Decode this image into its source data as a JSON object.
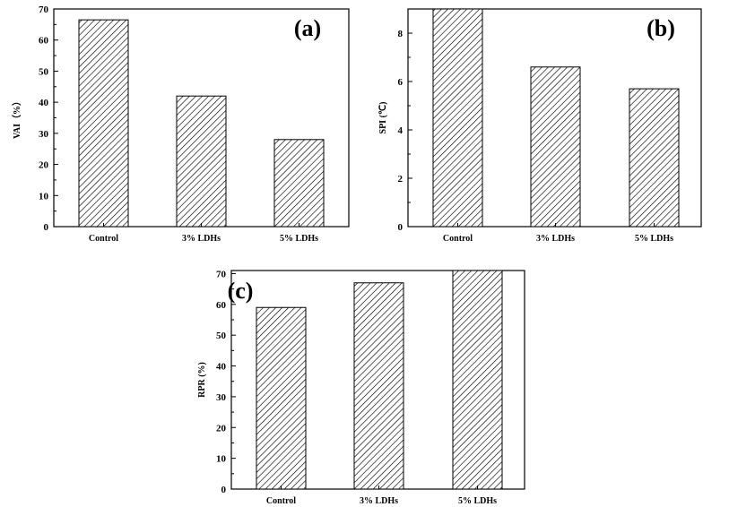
{
  "chart_data": [
    {
      "type": "bar",
      "panel_label": "(a)",
      "ylabel": "VAI（%）",
      "categories": [
        "Control",
        "3% LDHs",
        "5% LDHs"
      ],
      "values": [
        66.5,
        42,
        28
      ],
      "ylim": [
        0,
        70
      ],
      "yticks": [
        "0",
        "10",
        "20",
        "30",
        "40",
        "50",
        "60",
        "70"
      ],
      "pattern": "diagonal-hatch"
    },
    {
      "type": "bar",
      "panel_label": "(b)",
      "ylabel": "SPI (℃)",
      "categories": [
        "Control",
        "3% LDHs",
        "5% LDHs"
      ],
      "values": [
        9.0,
        6.6,
        5.7
      ],
      "ylim": [
        0,
        9
      ],
      "yticks": [
        "0",
        "2",
        "4",
        "6",
        "8"
      ],
      "pattern": "diagonal-hatch"
    },
    {
      "type": "bar",
      "panel_label": "(c)",
      "ylabel": "RPR (%)",
      "categories": [
        "Control",
        "3% LDHs",
        "5% LDHs"
      ],
      "values": [
        59,
        67,
        71
      ],
      "ylim": [
        0,
        71
      ],
      "yticks": [
        "0",
        "10",
        "20",
        "30",
        "40",
        "50",
        "60",
        "70"
      ],
      "pattern": "diagonal-hatch"
    }
  ],
  "colors": {
    "bar_fill": "#ffffff",
    "hatch": "#000000",
    "axes": "#000000"
  }
}
